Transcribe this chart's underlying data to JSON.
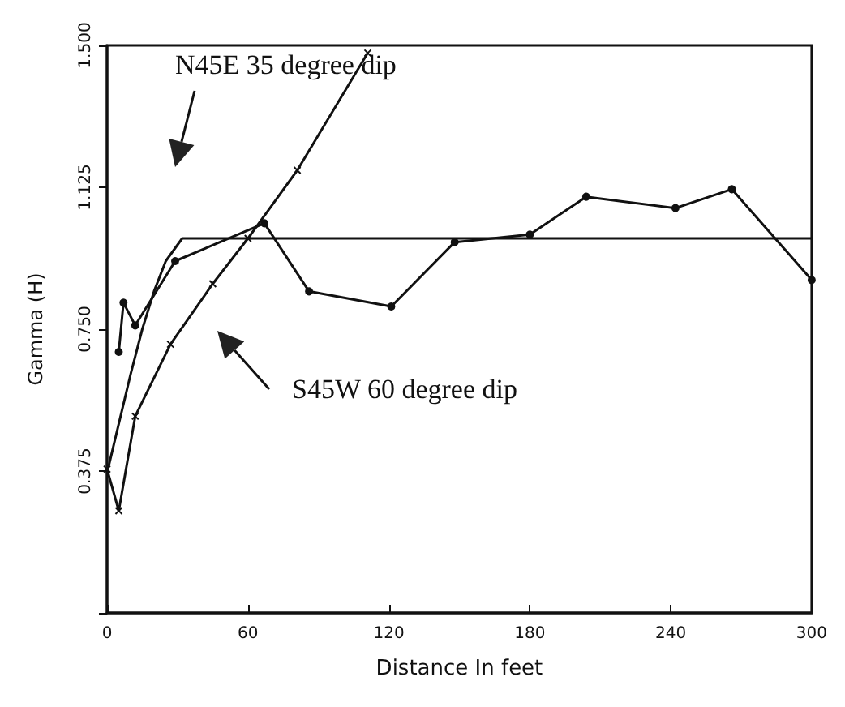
{
  "chart_data": {
    "type": "line",
    "xlabel": "Distance In feet",
    "ylabel": "Gamma (H)",
    "xlim": [
      0,
      300
    ],
    "xticks": [
      0,
      60,
      120,
      180,
      240,
      300
    ],
    "ylim": [
      0,
      1.5
    ],
    "yticks": [
      {
        "value": 0,
        "label": null
      },
      {
        "value": 0.375,
        "label": "0.375"
      },
      {
        "value": 0.75,
        "label": "0.750"
      },
      {
        "value": 1.125,
        "label": "1.125"
      },
      {
        "value": 1.5,
        "label": "1.500"
      }
    ],
    "grid": false,
    "line_style": "solid",
    "series": [
      {
        "color": "#111111",
        "marker": "none",
        "x": [
          0,
          5,
          10,
          15,
          20,
          25,
          32,
          300
        ],
        "values": [
          0.37,
          0.5,
          0.63,
          0.75,
          0.85,
          0.93,
          0.99,
          0.99
        ]
      },
      {
        "color": "#111111",
        "marker": "circle",
        "x": [
          5,
          7,
          12,
          29,
          67,
          86,
          121,
          148,
          180,
          204,
          242,
          266,
          300
        ],
        "values": [
          0.69,
          0.82,
          0.76,
          0.93,
          1.03,
          0.85,
          0.81,
          0.98,
          1.0,
          1.1,
          1.07,
          1.12,
          0.88
        ]
      },
      {
        "color": "#111111",
        "marker": "cross",
        "x": [
          0,
          5,
          12,
          27,
          45,
          60,
          81,
          111
        ],
        "values": [
          0.38,
          0.27,
          0.52,
          0.71,
          0.87,
          0.99,
          1.17,
          1.48
        ]
      }
    ],
    "annotations": [
      "N45E 35 degree dip",
      "S45W 60 degree dip"
    ]
  }
}
